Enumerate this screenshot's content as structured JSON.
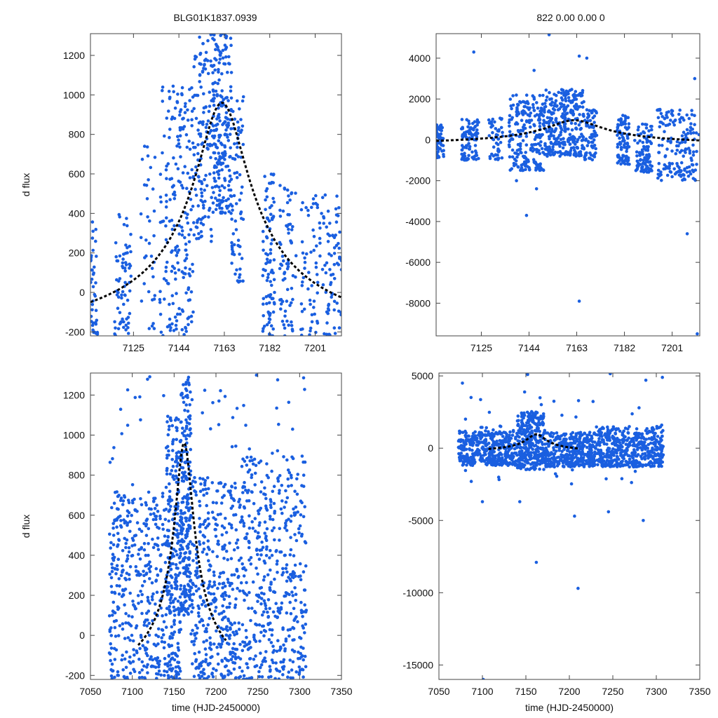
{
  "figure": {
    "title_left": "BLG01K1837.0939",
    "title_right": "822  0.00  0.00  0",
    "point_color": "#1a5fe0",
    "model_color": "#000000"
  },
  "chart_data": [
    {
      "type": "scatter",
      "panel": "top-left",
      "ylabel": "d flux",
      "xlabel": "",
      "xlim": [
        7107,
        7212
      ],
      "ylim": [
        -220,
        1310
      ],
      "xticks": [
        7125,
        7144,
        7163,
        7182,
        7201
      ],
      "yticks": [
        -200,
        0,
        200,
        400,
        600,
        800,
        1000,
        1200
      ],
      "seed": 11,
      "series": [
        {
          "name": "observations",
          "clusters": [
            {
              "x": [
                7107,
                7110
              ],
              "n": 40,
              "y": [
                -220,
                360
              ]
            },
            {
              "x": [
                7117,
                7124
              ],
              "n": 70,
              "y": [
                -220,
                400
              ]
            },
            {
              "x": [
                7128,
                7134
              ],
              "n": 35,
              "y": [
                -220,
                750
              ]
            },
            {
              "x": [
                7136,
                7150
              ],
              "n": 200,
              "y": [
                -220,
                1050
              ]
            },
            {
              "x": [
                7150,
                7158
              ],
              "n": 130,
              "y": [
                250,
                1310
              ]
            },
            {
              "x": [
                7158,
                7166
              ],
              "n": 220,
              "y": [
                400,
                1310
              ]
            },
            {
              "x": [
                7166,
                7171
              ],
              "n": 70,
              "y": [
                50,
                1000
              ]
            },
            {
              "x": [
                7179,
                7184
              ],
              "n": 90,
              "y": [
                -220,
                600
              ]
            },
            {
              "x": [
                7186,
                7193
              ],
              "n": 70,
              "y": [
                -220,
                550
              ]
            },
            {
              "x": [
                7195,
                7212
              ],
              "n": 130,
              "y": [
                -220,
                500
              ]
            }
          ]
        },
        {
          "name": "model",
          "peak_t": 7162,
          "peak_y": 960,
          "tau": 11,
          "base": -295
        }
      ]
    },
    {
      "type": "scatter",
      "panel": "top-right",
      "ylabel": "",
      "xlabel": "",
      "xlim": [
        7107,
        7212
      ],
      "ylim": [
        -9600,
        5200
      ],
      "xticks": [
        7125,
        7144,
        7163,
        7182,
        7201
      ],
      "yticks": [
        -8000,
        -6000,
        -4000,
        -2000,
        0,
        2000,
        4000
      ],
      "seed": 23,
      "series": [
        {
          "name": "observations",
          "clusters": [
            {
              "x": [
                7107,
                7110
              ],
              "n": 60,
              "y": [
                -900,
                800
              ]
            },
            {
              "x": [
                7117,
                7124
              ],
              "n": 90,
              "y": [
                -1000,
                1000
              ]
            },
            {
              "x": [
                7128,
                7134
              ],
              "n": 50,
              "y": [
                -1000,
                1200
              ]
            },
            {
              "x": [
                7136,
                7150
              ],
              "n": 220,
              "y": [
                -1500,
                2200
              ]
            },
            {
              "x": [
                7150,
                7166
              ],
              "n": 300,
              "y": [
                -800,
                2500
              ]
            },
            {
              "x": [
                7166,
                7171
              ],
              "n": 70,
              "y": [
                -1000,
                1500
              ]
            },
            {
              "x": [
                7179,
                7184
              ],
              "n": 90,
              "y": [
                -1200,
                1200
              ]
            },
            {
              "x": [
                7186,
                7193
              ],
              "n": 100,
              "y": [
                -1600,
                800
              ]
            },
            {
              "x": [
                7195,
                7212
              ],
              "n": 160,
              "y": [
                -2000,
                1500
              ]
            }
          ],
          "outliers": [
            [
              7152,
              5150
            ],
            [
              7122,
              4300
            ],
            [
              7164,
              4100
            ],
            [
              7167,
              4000
            ],
            [
              7146,
              3400
            ],
            [
              7210,
              3000
            ],
            [
              7139,
              -2000
            ],
            [
              7143,
              -3700
            ],
            [
              7147,
              -2400
            ],
            [
              7207,
              -4600
            ],
            [
              7164,
              -7900
            ],
            [
              7211,
              -9500
            ]
          ]
        },
        {
          "name": "model",
          "peak_t": 7162,
          "peak_y": 960,
          "tau": 11,
          "base": -295
        }
      ]
    },
    {
      "type": "scatter",
      "panel": "bottom-left",
      "ylabel": "d flux",
      "xlabel": "time (HJD-2450000)",
      "xlim": [
        7050,
        7350
      ],
      "ylim": [
        -220,
        1310
      ],
      "xticks": [
        7050,
        7100,
        7150,
        7200,
        7250,
        7300,
        7350
      ],
      "yticks": [
        -200,
        0,
        200,
        400,
        600,
        800,
        1000,
        1200
      ],
      "seed": 37,
      "series": [
        {
          "name": "observations",
          "clusters": [
            {
              "x": [
                7072,
                7140
              ],
              "n": 380,
              "y": [
                -220,
                700
              ]
            },
            {
              "x": [
                7140,
                7158
              ],
              "n": 260,
              "y": [
                -220,
                1100
              ]
            },
            {
              "x": [
                7158,
                7170
              ],
              "n": 220,
              "y": [
                100,
                1310
              ]
            },
            {
              "x": [
                7170,
                7230
              ],
              "n": 380,
              "y": [
                -220,
                800
              ]
            },
            {
              "x": [
                7230,
                7308
              ],
              "n": 450,
              "y": [
                -220,
                900
              ]
            },
            {
              "x": [
                7072,
                7308
              ],
              "n": 70,
              "y": [
                600,
                1310
              ]
            }
          ]
        },
        {
          "name": "model",
          "peak_t": 7162,
          "peak_y": 960,
          "tau": 11,
          "base": -295,
          "range": [
            7107,
            7212
          ]
        }
      ]
    },
    {
      "type": "scatter",
      "panel": "bottom-right",
      "ylabel": "",
      "xlabel": "time (HJD-2450000)",
      "xlim": [
        7050,
        7350
      ],
      "ylim": [
        -16000,
        5200
      ],
      "xticks": [
        7050,
        7100,
        7150,
        7200,
        7250,
        7300,
        7350
      ],
      "yticks": [
        -15000,
        -10000,
        -5000,
        0,
        5000
      ],
      "seed": 53,
      "series": [
        {
          "name": "observations",
          "clusters": [
            {
              "x": [
                7072,
                7140
              ],
              "n": 420,
              "y": [
                -1200,
                1200
              ]
            },
            {
              "x": [
                7140,
                7172
              ],
              "n": 320,
              "y": [
                -1500,
                2500
              ]
            },
            {
              "x": [
                7172,
                7230
              ],
              "n": 380,
              "y": [
                -1300,
                1100
              ]
            },
            {
              "x": [
                7230,
                7308
              ],
              "n": 480,
              "y": [
                -1300,
                1500
              ]
            },
            {
              "x": [
                7072,
                7308
              ],
              "n": 60,
              "y": [
                -2500,
                4000
              ]
            }
          ],
          "outliers": [
            [
              7077,
              4500
            ],
            [
              7152,
              5100
            ],
            [
              7247,
              5150
            ],
            [
              7288,
              4700
            ],
            [
              7307,
              4900
            ],
            [
              7100,
              -3700
            ],
            [
              7143,
              -3700
            ],
            [
              7206,
              -4700
            ],
            [
              7245,
              -4400
            ],
            [
              7285,
              -5000
            ],
            [
              7162,
              -7900
            ],
            [
              7210,
              -9700
            ],
            [
              7101,
              -16000
            ]
          ]
        },
        {
          "name": "model",
          "peak_t": 7162,
          "peak_y": 960,
          "tau": 11,
          "base": -295,
          "range": [
            7107,
            7212
          ]
        }
      ]
    }
  ]
}
